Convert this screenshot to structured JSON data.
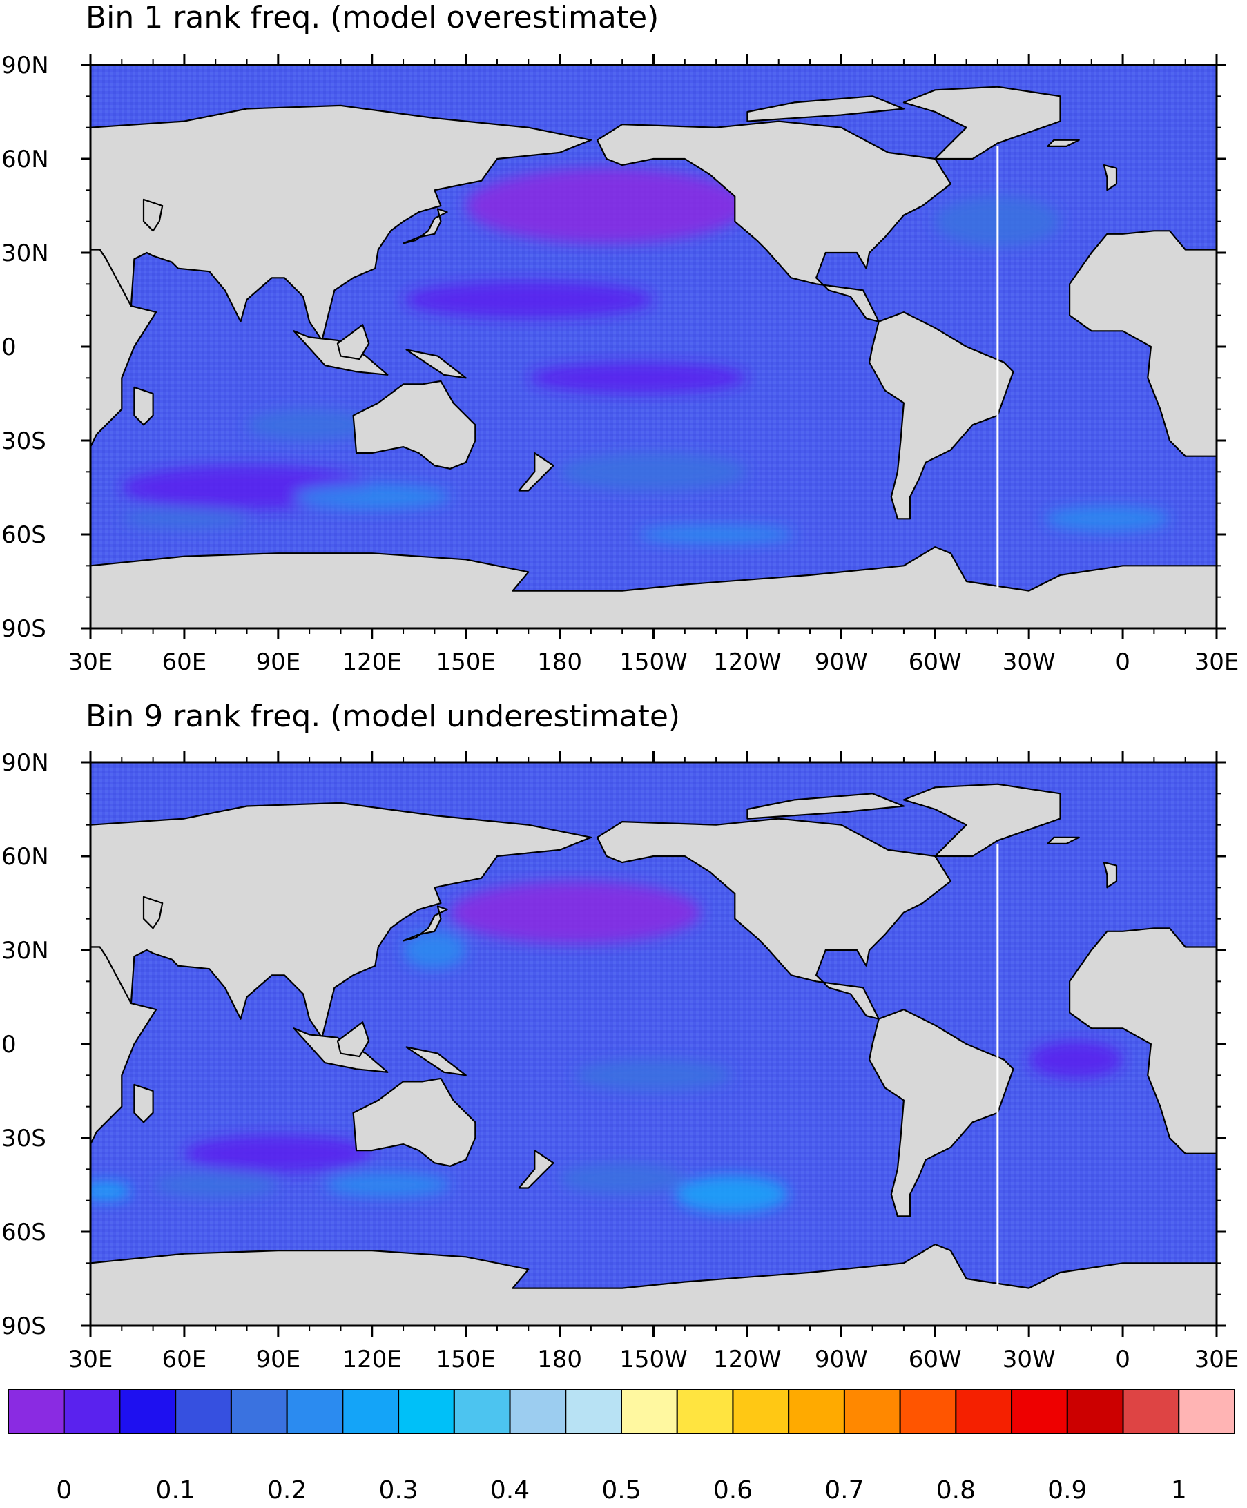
{
  "panels": [
    {
      "title": "Bin 1 rank freq. (model overestimate)",
      "lat_labels": [
        "90N",
        "60N",
        "30N",
        "0",
        "30S",
        "60S",
        "90S"
      ],
      "lon_labels": [
        "30E",
        "60E",
        "90E",
        "120E",
        "150E",
        "180",
        "150W",
        "120W",
        "90W",
        "60W",
        "30W",
        "0",
        "30E"
      ],
      "blobs": [
        {
          "lon": 195,
          "lat": 45,
          "rx": 45,
          "ry": 12,
          "level": 0
        },
        {
          "lon": 170,
          "lat": 15,
          "rx": 40,
          "ry": 6,
          "level": 1
        },
        {
          "lon": 205,
          "lat": -10,
          "rx": 35,
          "ry": 5,
          "level": 1
        },
        {
          "lon": 80,
          "lat": -45,
          "rx": 40,
          "ry": 7,
          "level": 1
        },
        {
          "lon": 210,
          "lat": -40,
          "rx": 30,
          "ry": 6,
          "level": 4
        },
        {
          "lon": 120,
          "lat": -48,
          "rx": 25,
          "ry": 4,
          "level": 5
        },
        {
          "lon": 355,
          "lat": -55,
          "rx": 20,
          "ry": 4,
          "level": 5
        },
        {
          "lon": 100,
          "lat": -25,
          "rx": 20,
          "ry": 5,
          "level": 4
        },
        {
          "lon": 320,
          "lat": 40,
          "rx": 20,
          "ry": 8,
          "level": 4
        },
        {
          "lon": 230,
          "lat": -60,
          "rx": 25,
          "ry": 3,
          "level": 5
        },
        {
          "lon": 60,
          "lat": -55,
          "rx": 20,
          "ry": 3,
          "level": 4
        }
      ]
    },
    {
      "title": "Bin 9 rank freq. (model underestimate)",
      "lat_labels": [
        "90N",
        "60N",
        "30N",
        "0",
        "30S",
        "60S",
        "90S"
      ],
      "lon_labels": [
        "30E",
        "60E",
        "90E",
        "120E",
        "150E",
        "180",
        "150W",
        "120W",
        "90W",
        "60W",
        "30W",
        "0",
        "30E"
      ],
      "blobs": [
        {
          "lon": 185,
          "lat": 42,
          "rx": 40,
          "ry": 10,
          "level": 0
        },
        {
          "lon": 90,
          "lat": -35,
          "rx": 30,
          "ry": 6,
          "level": 1
        },
        {
          "lon": 345,
          "lat": -5,
          "rx": 15,
          "ry": 6,
          "level": 1
        },
        {
          "lon": 235,
          "lat": -48,
          "rx": 18,
          "ry": 6,
          "level": 6
        },
        {
          "lon": 200,
          "lat": -43,
          "rx": 20,
          "ry": 5,
          "level": 4
        },
        {
          "lon": 70,
          "lat": -45,
          "rx": 20,
          "ry": 4,
          "level": 4
        },
        {
          "lon": 125,
          "lat": -45,
          "rx": 20,
          "ry": 4,
          "level": 5
        },
        {
          "lon": 140,
          "lat": 30,
          "rx": 10,
          "ry": 6,
          "level": 5
        },
        {
          "lon": 35,
          "lat": -47,
          "rx": 8,
          "ry": 3,
          "level": 6
        },
        {
          "lon": 210,
          "lat": -10,
          "rx": 25,
          "ry": 5,
          "level": 4
        }
      ]
    }
  ],
  "colorbar": {
    "labels": [
      "0",
      "0.1",
      "0.2",
      "0.3",
      "0.4",
      "0.5",
      "0.6",
      "0.7",
      "0.8",
      "0.9",
      "1"
    ],
    "colors": [
      "#8a2be2",
      "#5a22ee",
      "#1e10f0",
      "#3650e0",
      "#3a72e0",
      "#2b8bf0",
      "#14a4f8",
      "#00c0f8",
      "#4cc4f0",
      "#9ccdf0",
      "#b8e2f4",
      "#fff8a0",
      "#ffe440",
      "#ffc814",
      "#ffaa00",
      "#ff8800",
      "#ff5500",
      "#f52000",
      "#ee0000",
      "#cc0000",
      "#de4444",
      "#ffb4b4"
    ]
  },
  "map_colors": {
    "ocean": "#4a5cee",
    "land": "#d8d8d8",
    "coast": "#000000",
    "meridian_line": "#ffffff"
  }
}
